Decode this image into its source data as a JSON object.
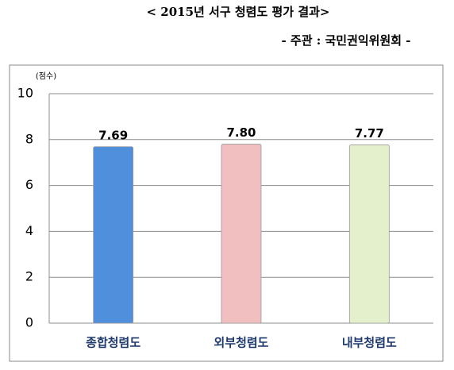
{
  "chart_data": {
    "type": "bar",
    "title": "< 2015년 서구 청렴도 평가 결과>",
    "subtitle": "- 주관 : 국민권익위원회 -",
    "y_label": "(점수)",
    "categories": [
      "종합청렴도",
      "외부청렴도",
      "내부청렴도"
    ],
    "values": [
      7.69,
      7.8,
      7.77
    ],
    "value_labels": [
      "7.69",
      "7.80",
      "7.77"
    ],
    "colors": [
      "#4f8fdc",
      "#f2bfc0",
      "#e4f0cc"
    ],
    "ylim": [
      0,
      10
    ],
    "yticks": [
      0,
      2,
      4,
      6,
      8,
      10
    ],
    "grid": true
  }
}
